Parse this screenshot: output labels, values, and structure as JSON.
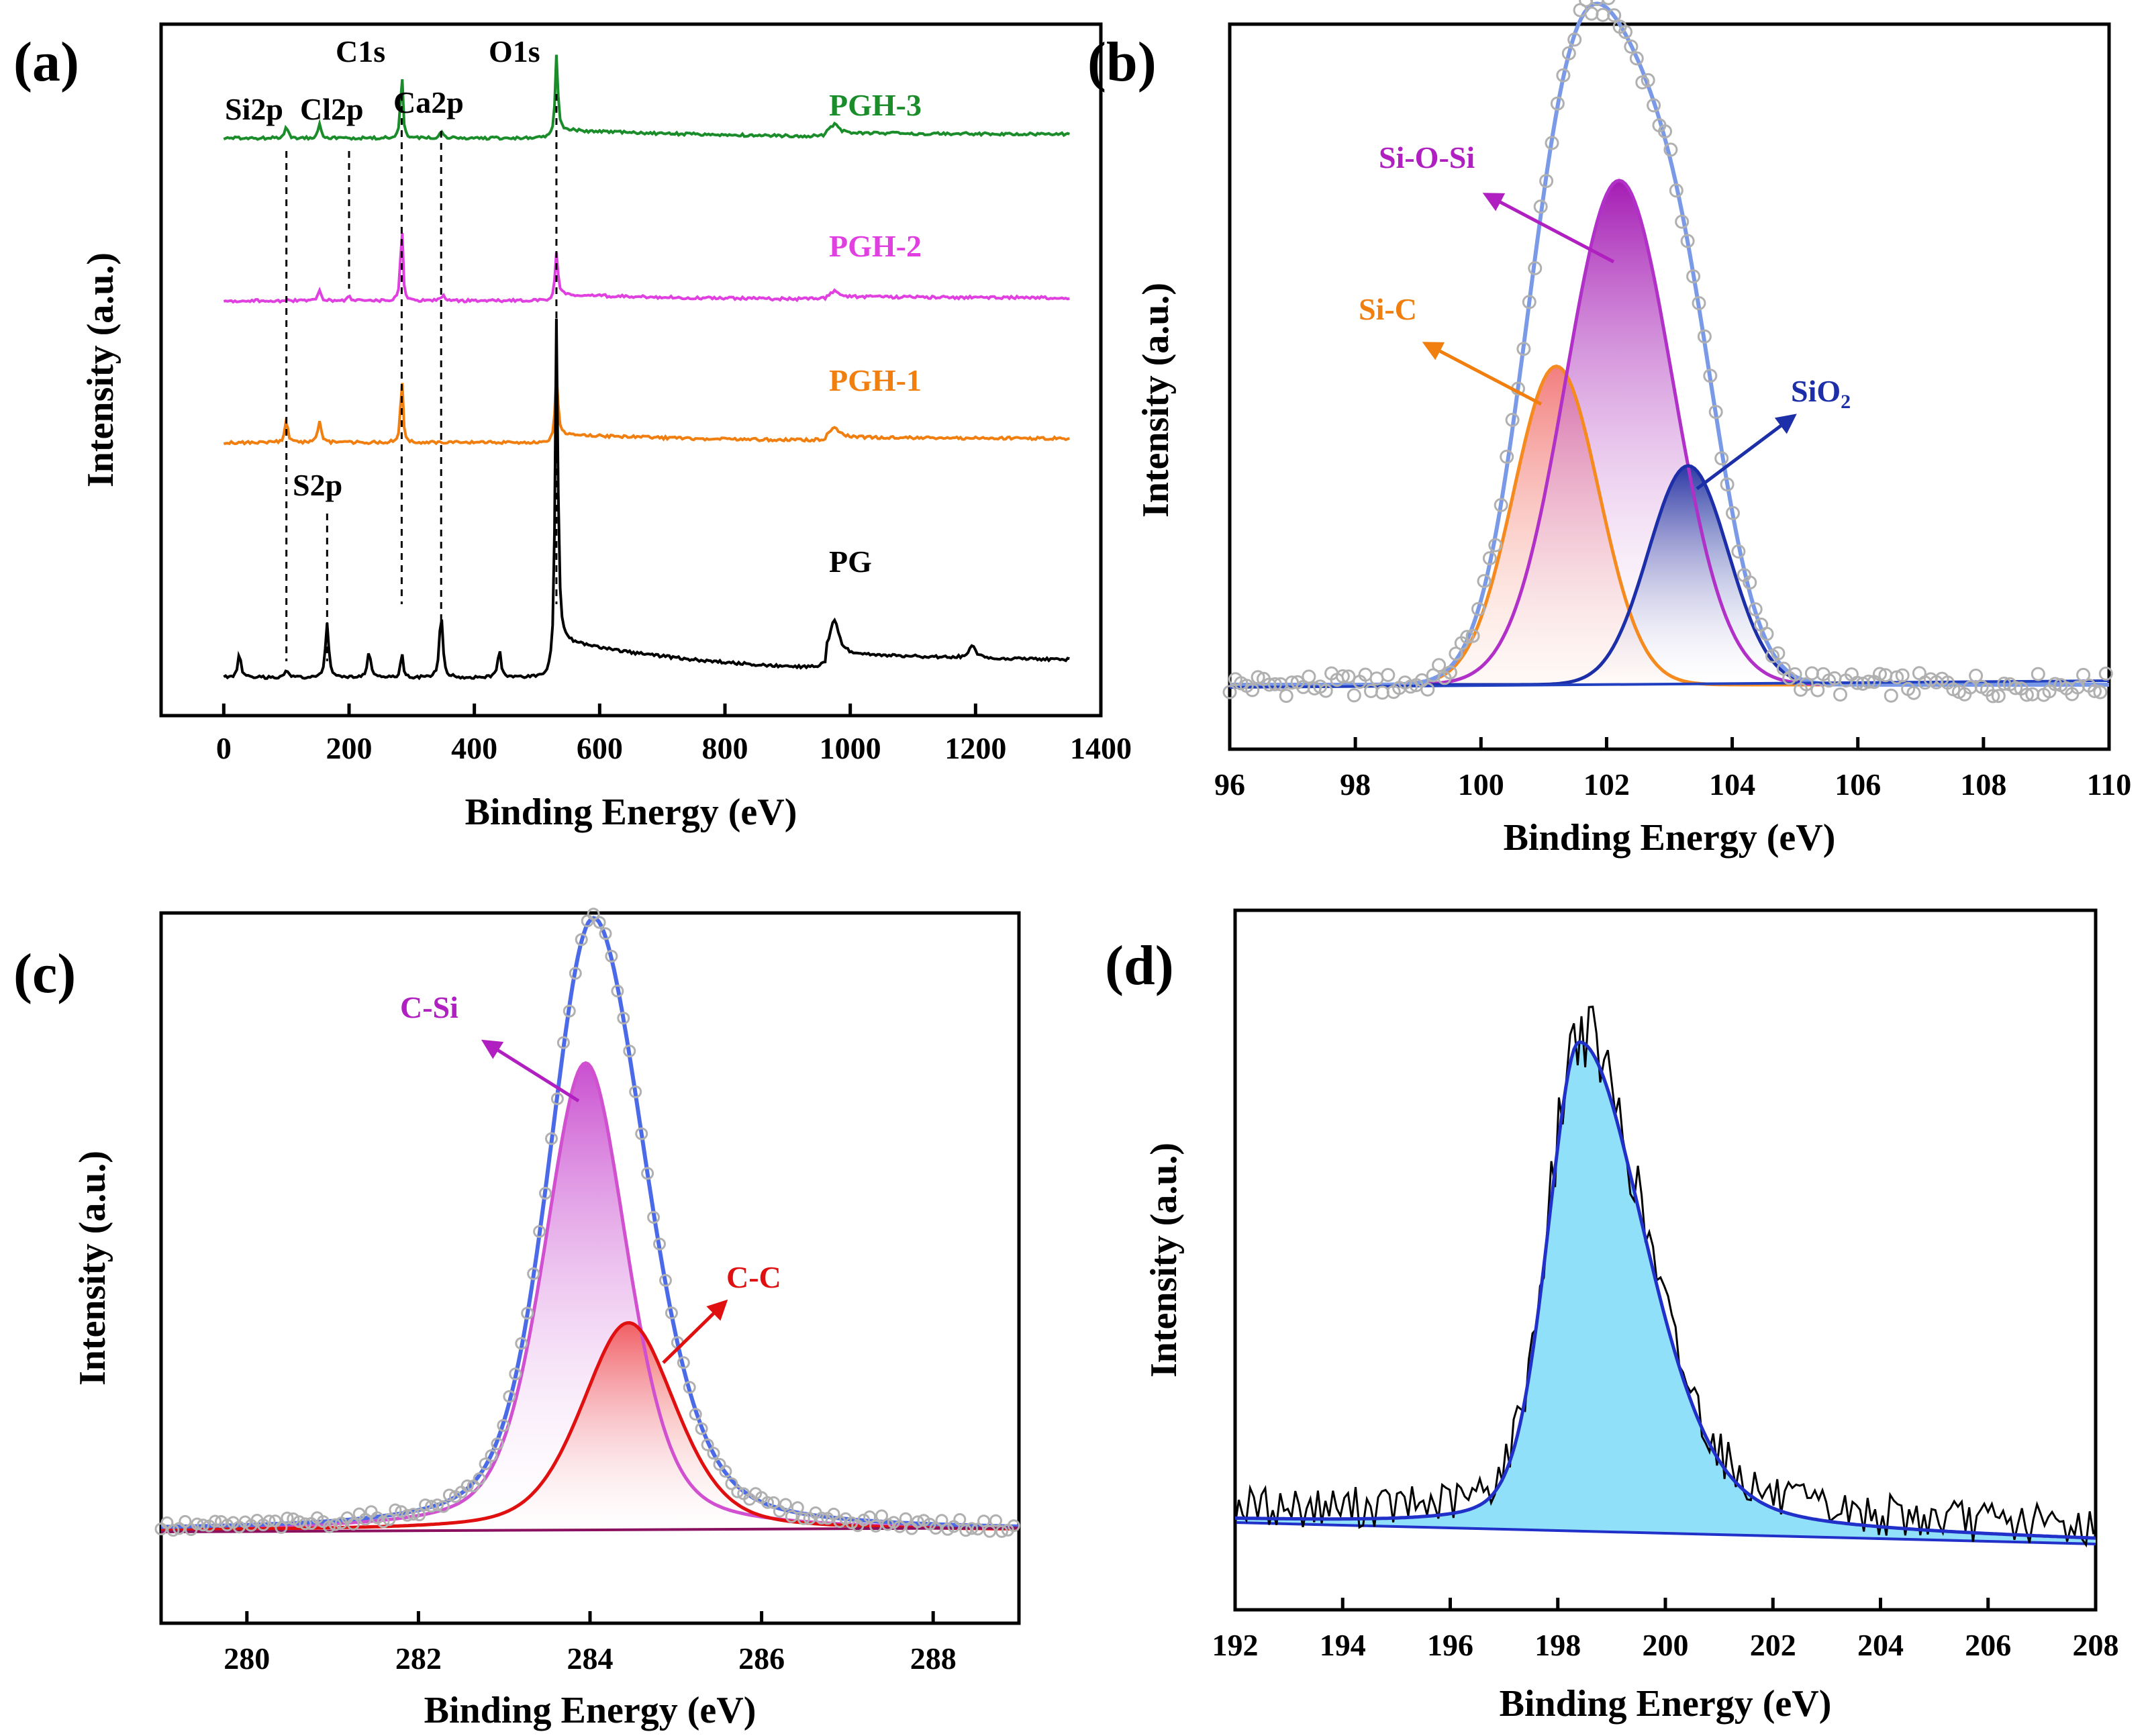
{
  "figure": {
    "shared_xlabel": "Binding Energy (eV)",
    "shared_ylabel": "Intensity (a.u.)"
  },
  "chart_data": [
    {
      "panel_label": "(a)",
      "type": "line",
      "title": "",
      "xlabel": "Binding Energy (eV)",
      "ylabel": "Intensity (a.u.)",
      "xlim": [
        -100,
        1400
      ],
      "xticks": [
        0,
        200,
        400,
        600,
        800,
        1000,
        1200,
        1400
      ],
      "ylim": [
        0,
        10
      ],
      "series": [
        {
          "name": "PGH-3",
          "color": "#1a8c2a",
          "offset": 8.35,
          "peaks": [
            [
              100,
              0.18,
              3
            ],
            [
              153,
              0.22,
              3
            ],
            [
              284,
              1.05,
              2
            ],
            [
              347,
              0.12,
              3
            ],
            [
              531,
              1.2,
              2.5
            ],
            [
              975,
              0.12,
              8
            ]
          ],
          "tail": 0.2
        },
        {
          "name": "PGH-2",
          "color": "#e040e0",
          "offset": 6.0,
          "peaks": [
            [
              153,
              0.14,
              3
            ],
            [
              200,
              0.06,
              3
            ],
            [
              284,
              1.2,
              2
            ],
            [
              350,
              0.08,
              3
            ],
            [
              531,
              0.7,
              2.5
            ],
            [
              975,
              0.08,
              8
            ]
          ],
          "tail": 0.15
        },
        {
          "name": "PGH-1",
          "color": "#f07f10",
          "offset": 3.95,
          "peaks": [
            [
              100,
              0.3,
              3
            ],
            [
              153,
              0.3,
              3
            ],
            [
              284,
              1.05,
              2
            ],
            [
              531,
              1.0,
              2.5
            ],
            [
              975,
              0.15,
              8
            ]
          ],
          "tail": 0.2
        },
        {
          "name": "PG",
          "color": "#000000",
          "offset": 0.55,
          "peaks": [
            [
              25,
              0.35,
              3
            ],
            [
              100,
              0.12,
              3
            ],
            [
              165,
              0.8,
              3
            ],
            [
              232,
              0.4,
              3
            ],
            [
              284,
              0.4,
              2
            ],
            [
              347,
              0.95,
              3
            ],
            [
              440,
              0.4,
              3
            ],
            [
              531,
              5.2,
              2.5
            ],
            [
              975,
              0.5,
              8
            ],
            [
              1195,
              0.2,
              6
            ]
          ],
          "tail": 0.9
        }
      ],
      "peak_labels": [
        {
          "text": "Si2p",
          "x": 100
        },
        {
          "text": "Cl2p",
          "x": 200
        },
        {
          "text": "C1s",
          "x": 284
        },
        {
          "text": "Ca2p",
          "x": 347
        },
        {
          "text": "O1s",
          "x": 531
        },
        {
          "text": "S2p",
          "x": 165
        }
      ]
    },
    {
      "panel_label": "(b)",
      "type": "line",
      "xlabel": "Binding Energy (eV)",
      "ylabel": "Intensity (a.u.)",
      "xlim": [
        96,
        110
      ],
      "xticks": [
        96,
        98,
        100,
        102,
        104,
        106,
        108,
        110
      ],
      "ylim": [
        0,
        10
      ],
      "baseline": 0.15,
      "components": [
        {
          "name": "Si-C",
          "center": 101.2,
          "height": 4.8,
          "fwhm": 1.6,
          "color": "#f58a1f",
          "fill": "#f8a0a0"
        },
        {
          "name": "Si-O-Si",
          "center": 102.2,
          "height": 7.6,
          "fwhm": 2.0,
          "color": "#b030c8",
          "fill": "#a020b0"
        },
        {
          "name": "SiO2",
          "center": 103.3,
          "height": 3.3,
          "fwhm": 1.5,
          "color": "#1c2ea8",
          "fill": "#3040b0"
        }
      ],
      "envelope_color": "#7a9ae8",
      "annotations": [
        {
          "text": "Si-O-Si",
          "color": "#b020c0"
        },
        {
          "text": "Si-C",
          "color": "#f07f10"
        },
        {
          "text": "SiO",
          "subscript": "2",
          "color": "#1c2ea8"
        }
      ]
    },
    {
      "panel_label": "(c)",
      "type": "line",
      "xlabel": "Binding Energy (eV)",
      "ylabel": "Intensity (a.u.)",
      "xlim": [
        279,
        289
      ],
      "xticks": [
        280,
        282,
        284,
        286,
        288
      ],
      "ylim": [
        0,
        10
      ],
      "baseline": 0.6,
      "components": [
        {
          "name": "C-Si",
          "center": 283.95,
          "height": 7.2,
          "fwhm": 1.15,
          "color": "#d050d0",
          "fill": "#c040c0"
        },
        {
          "name": "C-C",
          "center": 284.45,
          "height": 3.2,
          "fwhm": 1.3,
          "color": "#e01010",
          "fill": "#f06060"
        }
      ],
      "envelope_color": "#4a6ae8",
      "annotations": [
        {
          "text": "C-Si",
          "color": "#b020c0"
        },
        {
          "text": "C-C",
          "color": "#e01010"
        }
      ]
    },
    {
      "panel_label": "(d)",
      "type": "area",
      "xlabel": "Binding Energy (eV)",
      "ylabel": "Intensity (a.u.)",
      "xlim": [
        192,
        208
      ],
      "xticks": [
        192,
        194,
        196,
        198,
        200,
        202,
        204,
        206,
        208
      ],
      "ylim": [
        0,
        10
      ],
      "peak": {
        "center": 198.4,
        "height": 8.2,
        "fwhm_left": 1.4,
        "fwhm_right": 2.9
      },
      "fit_color": "#2030c8",
      "fill_color": "#8fe0f8",
      "data_color": "#000000"
    }
  ]
}
